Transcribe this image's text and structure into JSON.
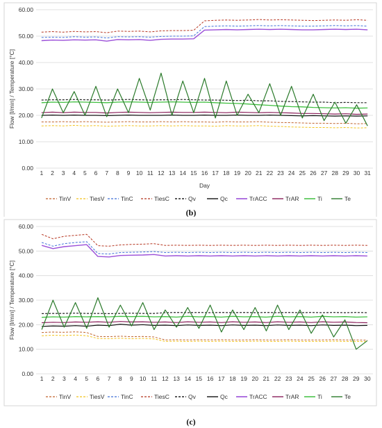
{
  "chart_data": [
    {
      "type": "line",
      "caption": "(b)",
      "title": "",
      "xlabel": "Day",
      "ylabel": "Flow [l/min] / Temperature [°C]",
      "ylim": [
        0,
        60
      ],
      "yticks": [
        "0.00",
        "10.00",
        "20.00",
        "30.00",
        "40.00",
        "50.00",
        "60.00"
      ],
      "categories": [
        "1",
        "2",
        "3",
        "4",
        "5",
        "6",
        "7",
        "8",
        "9",
        "10",
        "11",
        "12",
        "13",
        "14",
        "15",
        "16",
        "17",
        "18",
        "19",
        "20",
        "21",
        "22",
        "23",
        "24",
        "25",
        "26",
        "27",
        "28",
        "29",
        "30",
        "31"
      ],
      "grid": true,
      "legend_position": "bottom",
      "series": [
        {
          "name": "TinV",
          "color": "#c0622a",
          "dash": "3,2",
          "width": 1,
          "values": [
            17.5,
            17.5,
            17.6,
            17.5,
            17.6,
            17.5,
            17.4,
            17.5,
            17.6,
            17.5,
            17.5,
            17.6,
            17.5,
            17.6,
            17.5,
            17.5,
            17.4,
            17.6,
            17.5,
            17.5,
            17.6,
            17.4,
            17.3,
            17.2,
            17.1,
            17.0,
            17.0,
            16.9,
            17.0,
            16.8,
            16.9
          ]
        },
        {
          "name": "TiesV",
          "color": "#f2c21b",
          "dash": "3,2",
          "width": 1,
          "values": [
            16.0,
            16.1,
            16.0,
            16.2,
            16.0,
            16.1,
            15.9,
            16.0,
            16.1,
            16.0,
            16.0,
            16.1,
            16.0,
            16.1,
            16.0,
            16.0,
            15.9,
            16.1,
            16.0,
            16.0,
            16.1,
            15.9,
            15.8,
            15.6,
            15.5,
            15.4,
            15.4,
            15.3,
            15.4,
            15.2,
            15.3
          ]
        },
        {
          "name": "TinC",
          "color": "#3d6fd8",
          "dash": "3,2",
          "width": 1,
          "values": [
            49.5,
            49.6,
            49.5,
            49.8,
            49.6,
            49.7,
            49.3,
            49.8,
            49.7,
            49.8,
            49.6,
            49.9,
            50.0,
            50.0,
            50.1,
            53.6,
            53.8,
            53.9,
            53.8,
            53.9,
            54.0,
            53.9,
            54.0,
            53.9,
            53.8,
            53.8,
            53.9,
            54.0,
            53.9,
            54.0,
            53.8
          ]
        },
        {
          "name": "TiesC",
          "color": "#b5341f",
          "dash": "3,2",
          "width": 1,
          "values": [
            51.5,
            51.7,
            51.5,
            51.8,
            51.6,
            51.7,
            51.3,
            51.9,
            51.8,
            51.9,
            51.6,
            52.0,
            52.1,
            52.1,
            52.2,
            55.8,
            56.0,
            56.1,
            56.0,
            56.1,
            56.3,
            56.1,
            56.2,
            56.1,
            56.0,
            55.9,
            56.0,
            56.1,
            56.0,
            56.2,
            56.0
          ]
        },
        {
          "name": "Qv",
          "color": "#222222",
          "dash": "3,2",
          "width": 1.2,
          "values": [
            25.8,
            25.9,
            25.9,
            26.0,
            25.9,
            25.9,
            25.8,
            25.9,
            26.0,
            25.9,
            25.8,
            25.9,
            25.9,
            26.0,
            25.9,
            25.8,
            25.8,
            25.7,
            25.6,
            25.7,
            25.5,
            25.5,
            25.3,
            25.2,
            25.1,
            25.0,
            25.0,
            24.8,
            24.9,
            24.8,
            24.8
          ]
        },
        {
          "name": "Qc",
          "color": "#111111",
          "dash": "",
          "width": 1.2,
          "values": [
            20.0,
            20.1,
            20.0,
            20.1,
            20.0,
            20.0,
            19.9,
            20.0,
            20.1,
            20.0,
            20.0,
            20.0,
            20.1,
            20.0,
            20.0,
            20.1,
            20.0,
            20.0,
            20.1,
            20.0,
            20.0,
            20.1,
            20.0,
            19.9,
            19.8,
            19.9,
            19.8,
            19.7,
            19.8,
            19.7,
            19.8
          ]
        },
        {
          "name": "TrACC",
          "color": "#9b4fd8",
          "dash": "",
          "width": 1.4,
          "values": [
            48.3,
            48.5,
            48.4,
            48.6,
            48.5,
            48.6,
            48.1,
            48.7,
            48.6,
            48.7,
            48.4,
            48.8,
            48.9,
            48.9,
            49.0,
            52.3,
            52.4,
            52.5,
            52.4,
            52.5,
            52.6,
            52.5,
            52.6,
            52.5,
            52.4,
            52.4,
            52.5,
            52.6,
            52.5,
            52.6,
            52.4
          ]
        },
        {
          "name": "TrAR",
          "color": "#8a1f5a",
          "dash": "",
          "width": 1.2,
          "values": [
            21.0,
            21.2,
            21.0,
            21.2,
            21.1,
            21.1,
            20.9,
            21.1,
            21.2,
            21.1,
            21.0,
            21.1,
            21.2,
            21.1,
            21.1,
            21.2,
            21.1,
            21.0,
            21.2,
            21.1,
            21.0,
            21.1,
            21.0,
            20.9,
            20.7,
            20.7,
            20.6,
            20.5,
            20.6,
            20.4,
            20.5
          ]
        },
        {
          "name": "Ti",
          "color": "#3fbf3f",
          "dash": "",
          "width": 1.3,
          "values": [
            24.8,
            25.0,
            24.9,
            25.1,
            25.0,
            24.9,
            24.8,
            25.0,
            25.1,
            25.0,
            24.9,
            25.0,
            25.1,
            25.0,
            24.9,
            25.0,
            24.8,
            24.6,
            24.5,
            24.3,
            24.0,
            23.8,
            23.5,
            23.3,
            23.2,
            23.0,
            22.9,
            22.8,
            22.9,
            22.7,
            22.8
          ]
        },
        {
          "name": "Te",
          "color": "#2a7a2a",
          "dash": "",
          "width": 1.2,
          "values": [
            19.0,
            30.0,
            21.0,
            29.0,
            20.0,
            31.0,
            19.5,
            30.0,
            21.0,
            34.0,
            22.0,
            36.0,
            20.0,
            33.0,
            21.0,
            34.0,
            19.0,
            33.0,
            20.0,
            28.0,
            21.0,
            32.0,
            20.0,
            31.0,
            19.0,
            28.0,
            18.0,
            25.0,
            17.0,
            24.0,
            16.0
          ]
        }
      ]
    },
    {
      "type": "line",
      "caption": "(c)",
      "title": "",
      "xlabel": "Day",
      "ylabel": "Flow [l/min] / Temperature [°C]",
      "ylim": [
        0,
        60
      ],
      "yticks": [
        "0.00",
        "10.00",
        "20.00",
        "30.00",
        "40.00",
        "50.00",
        "60.00"
      ],
      "categories": [
        "1",
        "2",
        "3",
        "4",
        "5",
        "6",
        "7",
        "8",
        "9",
        "10",
        "11",
        "12",
        "13",
        "14",
        "15",
        "16",
        "17",
        "18",
        "19",
        "20",
        "21",
        "22",
        "23",
        "24",
        "25",
        "26",
        "27",
        "28",
        "29",
        "30"
      ],
      "grid": true,
      "legend_position": "bottom",
      "series": [
        {
          "name": "TinV",
          "color": "#c0622a",
          "dash": "3,2",
          "width": 1,
          "values": [
            16.8,
            17.0,
            16.9,
            17.1,
            16.8,
            15.2,
            15.1,
            15.3,
            15.1,
            15.2,
            15.0,
            13.8,
            13.9,
            13.8,
            13.9,
            13.8,
            13.9,
            13.8,
            13.8,
            13.9,
            13.8,
            13.8,
            13.9,
            13.8,
            13.8,
            13.8,
            13.9,
            13.8,
            13.8,
            13.7
          ]
        },
        {
          "name": "TiesV",
          "color": "#f2c21b",
          "dash": "3,2",
          "width": 1,
          "values": [
            15.5,
            15.7,
            15.6,
            15.8,
            15.5,
            14.4,
            14.3,
            14.5,
            14.3,
            14.4,
            14.2,
            13.2,
            13.3,
            13.2,
            13.3,
            13.2,
            13.3,
            13.2,
            13.2,
            13.3,
            13.2,
            13.2,
            13.3,
            13.2,
            13.2,
            13.2,
            13.3,
            13.2,
            13.2,
            13.1
          ]
        },
        {
          "name": "TinC",
          "color": "#3d6fd8",
          "dash": "3,2",
          "width": 1,
          "values": [
            53.5,
            52.0,
            53.0,
            53.5,
            53.8,
            49.0,
            48.8,
            49.4,
            49.5,
            49.6,
            49.8,
            49.4,
            49.5,
            49.4,
            49.5,
            49.4,
            49.5,
            49.4,
            49.5,
            49.4,
            49.5,
            49.4,
            49.5,
            49.4,
            49.5,
            49.4,
            49.5,
            49.4,
            49.5,
            49.4
          ]
        },
        {
          "name": "TiesC",
          "color": "#b5341f",
          "dash": "3,2",
          "width": 1,
          "values": [
            56.8,
            55.0,
            56.0,
            56.4,
            56.8,
            52.2,
            52.0,
            52.5,
            52.7,
            52.8,
            53.0,
            52.3,
            52.4,
            52.3,
            52.4,
            52.3,
            52.4,
            52.3,
            52.4,
            52.3,
            52.4,
            52.3,
            52.4,
            52.3,
            52.4,
            52.3,
            52.4,
            52.3,
            52.4,
            52.3
          ]
        },
        {
          "name": "Qv",
          "color": "#222222",
          "dash": "3,2",
          "width": 1.2,
          "values": [
            24.5,
            24.6,
            24.6,
            24.7,
            24.6,
            24.6,
            24.5,
            24.6,
            24.7,
            24.6,
            24.6,
            24.9,
            25.0,
            24.9,
            25.0,
            24.9,
            25.0,
            24.9,
            25.0,
            24.9,
            25.0,
            24.9,
            25.0,
            24.9,
            25.0,
            24.9,
            25.0,
            24.9,
            25.0,
            24.9
          ]
        },
        {
          "name": "Qc",
          "color": "#111111",
          "dash": "",
          "width": 1.2,
          "values": [
            19.3,
            19.5,
            19.4,
            19.6,
            19.4,
            19.8,
            19.6,
            20.2,
            19.8,
            20.0,
            19.7,
            19.8,
            19.6,
            19.9,
            19.7,
            19.8,
            19.6,
            19.9,
            19.7,
            19.8,
            19.6,
            19.9,
            19.7,
            19.8,
            19.6,
            19.9,
            19.7,
            19.8,
            19.6,
            19.7
          ]
        },
        {
          "name": "TrACC",
          "color": "#9b4fd8",
          "dash": "",
          "width": 1.4,
          "values": [
            52.3,
            51.0,
            51.8,
            52.2,
            52.6,
            47.8,
            47.6,
            48.2,
            48.3,
            48.4,
            48.6,
            48.0,
            48.1,
            48.0,
            48.1,
            48.0,
            48.1,
            48.0,
            48.1,
            48.0,
            48.1,
            48.0,
            48.1,
            48.0,
            48.1,
            48.0,
            48.1,
            48.0,
            48.1,
            48.0
          ]
        },
        {
          "name": "TrAR",
          "color": "#8a1f5a",
          "dash": "",
          "width": 1.2,
          "values": [
            20.8,
            21.0,
            20.9,
            21.1,
            21.0,
            21.2,
            21.0,
            21.3,
            21.1,
            21.2,
            21.0,
            21.1,
            20.9,
            21.2,
            21.0,
            21.1,
            20.9,
            21.2,
            21.0,
            21.1,
            20.9,
            21.2,
            21.0,
            21.1,
            20.9,
            21.2,
            21.0,
            21.1,
            20.9,
            20.8
          ]
        },
        {
          "name": "Ti",
          "color": "#3fbf3f",
          "dash": "",
          "width": 1.3,
          "values": [
            23.0,
            23.2,
            23.1,
            23.3,
            23.2,
            23.3,
            23.2,
            23.4,
            23.3,
            23.4,
            23.2,
            23.3,
            23.1,
            23.4,
            23.2,
            23.3,
            23.1,
            23.4,
            23.2,
            23.3,
            23.1,
            23.4,
            23.2,
            23.3,
            23.1,
            23.4,
            23.2,
            23.3,
            23.1,
            23.2
          ]
        },
        {
          "name": "Te",
          "color": "#2a7a2a",
          "dash": "",
          "width": 1.2,
          "values": [
            18.0,
            30.0,
            19.0,
            29.0,
            18.5,
            31.0,
            19.0,
            28.0,
            19.5,
            29.0,
            18.0,
            26.0,
            19.0,
            27.0,
            18.5,
            28.0,
            17.0,
            26.0,
            18.0,
            27.0,
            17.5,
            28.0,
            18.0,
            26.0,
            16.5,
            24.0,
            15.0,
            22.0,
            10.0,
            13.5
          ]
        }
      ]
    }
  ]
}
